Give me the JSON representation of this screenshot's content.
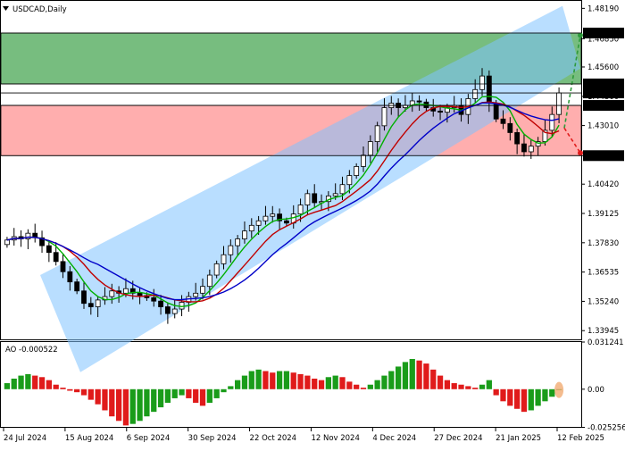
{
  "header": {
    "symbol_title": "USDCAD,Daily",
    "menu_icon": "triangle-down-icon"
  },
  "colors": {
    "channel": "#7fc3ff",
    "resistance_zone": "#2e9a3b",
    "support_zone": "#ff6b6b",
    "ma_green": "#00b000",
    "ma_red": "#c00000",
    "ma_blue": "#0000c8",
    "ao_up": "#1a9c1a",
    "ao_down": "#e01b1b",
    "candle": "#000000"
  },
  "chart_data": [
    {
      "type": "candlestick",
      "title": "USDCAD,Daily",
      "ylim": [
        1.3352,
        1.4852
      ],
      "y_ticks": [
        "1.48190",
        "1.46850",
        "1.45600",
        "1.44300",
        "1.43010",
        "1.41680",
        "1.40420",
        "1.39125",
        "1.37830",
        "1.36535",
        "1.35240",
        "1.33945"
      ],
      "x_tick_labels": [
        "24 Jul 2024",
        "15 Aug 2024",
        "6 Sep 2024",
        "30 Sep 2024",
        "22 Oct 2024",
        "12 Nov 2024",
        "4 Dec 2024",
        "27 Dec 2024",
        "21 Jan 2025",
        "12 Feb 2025"
      ],
      "level_labels": [
        "1.47100",
        "1.44850",
        "1.44452",
        "1.43900",
        "1.41680"
      ],
      "zones": [
        {
          "kind": "resistance",
          "from": 1.4485,
          "to": 1.471
        },
        {
          "kind": "support",
          "from": 1.4168,
          "to": 1.439
        }
      ],
      "channel": {
        "lower_start": [
          0,
          1.3487
        ],
        "lower_end": [
          1.0,
          1.423
        ],
        "upper_start": [
          0,
          1.364
        ],
        "upper_end": [
          1.0,
          1.483
        ]
      },
      "series_close": [
        1.3795,
        1.381,
        1.38,
        1.3825,
        1.3805,
        1.377,
        1.374,
        1.37,
        1.3655,
        1.361,
        1.357,
        1.3515,
        1.35,
        1.353,
        1.3545,
        1.357,
        1.356,
        1.358,
        1.356,
        1.355,
        1.354,
        1.3525,
        1.35,
        1.347,
        1.349,
        1.352,
        1.3545,
        1.356,
        1.359,
        1.364,
        1.369,
        1.373,
        1.377,
        1.38,
        1.3835,
        1.386,
        1.388,
        1.39,
        1.391,
        1.388,
        1.387,
        1.391,
        1.395,
        1.4,
        1.396,
        1.3965,
        1.399,
        1.4,
        1.404,
        1.408,
        1.412,
        1.417,
        1.423,
        1.43,
        1.438,
        1.44,
        1.438,
        1.439,
        1.441,
        1.4405,
        1.438,
        1.4365,
        1.436,
        1.438,
        1.439,
        1.435,
        1.442,
        1.446,
        1.452,
        1.44,
        1.433,
        1.431,
        1.427,
        1.422,
        1.4185,
        1.421,
        1.423,
        1.428,
        1.435,
        1.4445
      ],
      "series_high_extra": 0.0035,
      "ma_labels": [],
      "forecast_arrows": [
        {
          "from": 1.429,
          "to": 1.47,
          "color": "#2e9a3b"
        },
        {
          "from": 1.429,
          "to": 1.418,
          "color": "#e01b1b"
        }
      ]
    },
    {
      "type": "bar",
      "title": "AO -0.000522",
      "ylim": [
        -0.02556,
        0.03124
      ],
      "y_ticks": [
        "0.031241",
        "0.00",
        "-0.025256"
      ],
      "values": [
        0.004,
        0.007,
        0.009,
        0.01,
        0.009,
        0.008,
        0.006,
        0.003,
        0.001,
        -0.001,
        -0.002,
        -0.004,
        -0.007,
        -0.01,
        -0.014,
        -0.018,
        -0.021,
        -0.024,
        -0.023,
        -0.021,
        -0.018,
        -0.015,
        -0.012,
        -0.009,
        -0.006,
        -0.004,
        -0.006,
        -0.009,
        -0.011,
        -0.009,
        -0.006,
        -0.002,
        0.002,
        0.006,
        0.009,
        0.012,
        0.013,
        0.012,
        0.011,
        0.012,
        0.012,
        0.011,
        0.01,
        0.009,
        0.007,
        0.006,
        0.008,
        0.009,
        0.008,
        0.005,
        0.003,
        0.001,
        0.003,
        0.006,
        0.009,
        0.012,
        0.015,
        0.018,
        0.02,
        0.019,
        0.017,
        0.013,
        0.009,
        0.006,
        0.004,
        0.003,
        0.002,
        0.001,
        0.003,
        0.006,
        -0.004,
        -0.008,
        -0.011,
        -0.013,
        -0.015,
        -0.014,
        -0.011,
        -0.008,
        -0.005,
        -0.0005
      ]
    }
  ]
}
